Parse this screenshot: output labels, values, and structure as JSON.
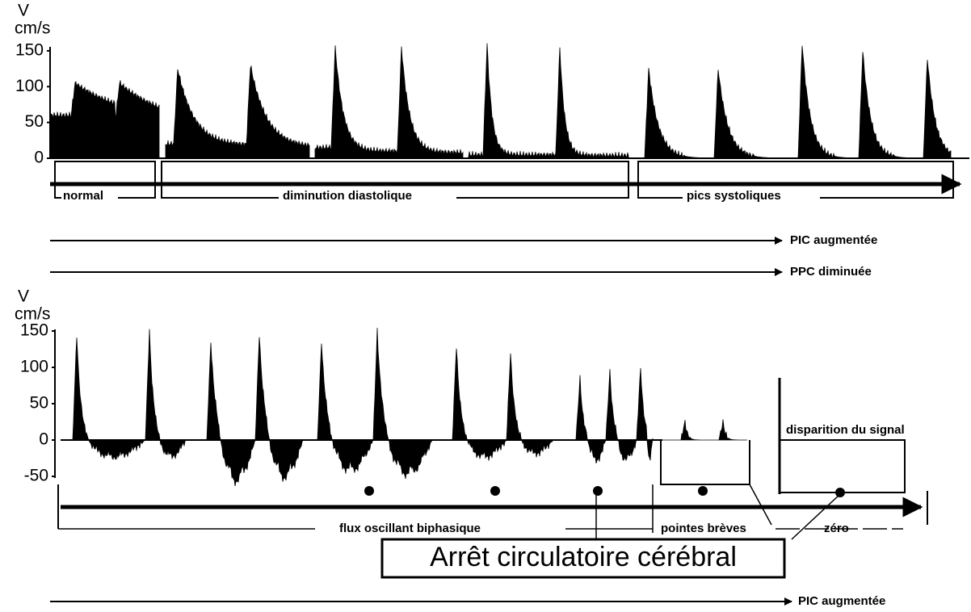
{
  "top_panel": {
    "axis_label": [
      "V",
      "cm/s"
    ],
    "ticks": [
      150,
      100,
      50,
      0
    ],
    "phases": [
      "normal",
      "diminution diastolique",
      "pics systoliques"
    ]
  },
  "middle_arrows": [
    "PIC augmentée",
    "PPC diminuée"
  ],
  "bottom_panel": {
    "axis_label": [
      "V",
      "cm/s"
    ],
    "ticks": [
      150,
      100,
      50,
      0,
      -50
    ],
    "signal_label": "disparition du signal",
    "phases": [
      "flux oscillant biphasique",
      "pointes brèves",
      "zéro"
    ],
    "banner": "Arrêt circulatoire cérébral"
  },
  "footer_arrow": "PIC augmentée"
}
